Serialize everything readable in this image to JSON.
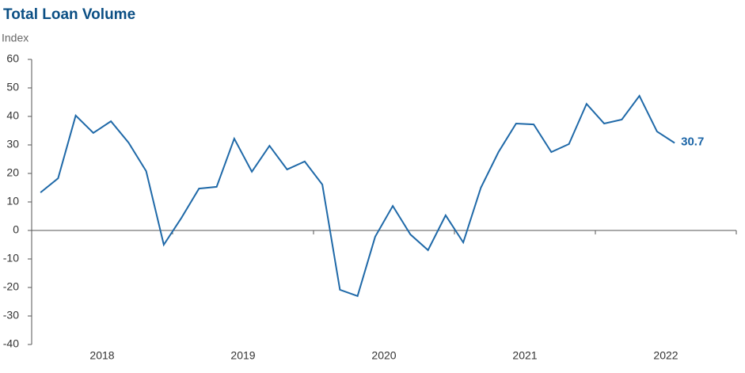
{
  "chart_data": {
    "type": "line",
    "title": "Total Loan Volume",
    "y_label": "Index",
    "x": [
      2018.0625,
      2018.1875,
      2018.3125,
      2018.4375,
      2018.5625,
      2018.6875,
      2018.8125,
      2018.9375,
      2019.0625,
      2019.1875,
      2019.3125,
      2019.4375,
      2019.5625,
      2019.6875,
      2019.8125,
      2019.9375,
      2020.0625,
      2020.1875,
      2020.3125,
      2020.4375,
      2020.5625,
      2020.6875,
      2020.8125,
      2020.9375,
      2021.0625,
      2021.1875,
      2021.3125,
      2021.4375,
      2021.5625,
      2021.6875,
      2021.8125,
      2021.9375,
      2022.0625,
      2022.1875,
      2022.3125,
      2022.4375,
      2022.5625
    ],
    "series": [
      {
        "name": "Total Loan Volume",
        "color": "#1f69a8",
        "values": [
          13.3,
          18.3,
          40.3,
          34.2,
          38.3,
          30.8,
          20.8,
          -5,
          4.4,
          14.7,
          15.3,
          32.2,
          20.6,
          29.7,
          21.4,
          24.2,
          16.1,
          -20.8,
          -23,
          -2.2,
          8.6,
          -1.4,
          -6.9,
          5.3,
          -4.2,
          15,
          27.5,
          37.5,
          37.2,
          27.5,
          30.3,
          44.4,
          37.5,
          38.9,
          47.2,
          34.7,
          30.7
        ]
      }
    ],
    "last_value_label": "30.7",
    "xlim": [
      2018,
      2023
    ],
    "xticks": [
      2018,
      2019,
      2020,
      2021,
      2022,
      2023
    ],
    "xtick_labels": [
      {
        "value": 2018.5,
        "label": "2018"
      },
      {
        "value": 2019.5,
        "label": "2019"
      },
      {
        "value": 2020.5,
        "label": "2020"
      },
      {
        "value": 2021.5,
        "label": "2021"
      },
      {
        "value": 2022.5,
        "label": "2022"
      }
    ],
    "ylim": [
      -40,
      60
    ],
    "yticks": [
      -40,
      -30,
      -20,
      -10,
      0,
      10,
      20,
      30,
      40,
      50,
      60
    ]
  }
}
